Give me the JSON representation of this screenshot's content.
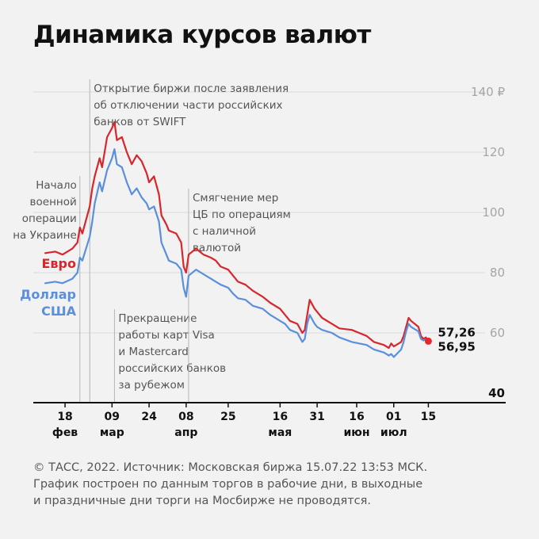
{
  "title": "Динамика курсов валют",
  "footer": {
    "line1": "© ТАСС, 2022. Источник: Московская биржа 15.07.22 13:53 МСК.",
    "line2": "График построен по данным торгов в рабочие дни, в выходные",
    "line3": "и праздничные дни торги на Мосбирже не проводятся."
  },
  "chart_data": {
    "type": "line",
    "title": "Динамика курсов валют",
    "ylim": [
      40,
      140
    ],
    "yticks": [
      {
        "value": 140,
        "label": "140 ₽"
      },
      {
        "value": 120,
        "label": "120"
      },
      {
        "value": 100,
        "label": "100"
      },
      {
        "value": 80,
        "label": "80"
      },
      {
        "value": 60,
        "label": "60"
      },
      {
        "value": 40,
        "label": "40"
      }
    ],
    "x_day_range": [
      "2022-02-09",
      "2022-07-20"
    ],
    "xticks": [
      {
        "date": "2022-02-18",
        "day": "18",
        "month": "фев"
      },
      {
        "date": "2022-03-09",
        "day": "09",
        "month": "мар"
      },
      {
        "date": "2022-03-24",
        "day": "24",
        "month": ""
      },
      {
        "date": "2022-04-08",
        "day": "08",
        "month": "апр"
      },
      {
        "date": "2022-04-25",
        "day": "25",
        "month": ""
      },
      {
        "date": "2022-05-16",
        "day": "16",
        "month": "мая"
      },
      {
        "date": "2022-05-31",
        "day": "31",
        "month": ""
      },
      {
        "date": "2022-06-16",
        "day": "16",
        "month": "июн"
      },
      {
        "date": "2022-07-01",
        "day": "01",
        "month": "июл"
      },
      {
        "date": "2022-07-15",
        "day": "15",
        "month": ""
      }
    ],
    "annotations": [
      {
        "date": "2022-02-24",
        "lines": [
          "Начало",
          "военной",
          "операции",
          "на Украине"
        ],
        "side": "left",
        "align": "top"
      },
      {
        "date": "2022-02-28",
        "lines": [
          "Открытие биржи после заявления",
          "об отключении части российских",
          "банков от SWIFT"
        ],
        "side": "right",
        "align": "top"
      },
      {
        "date": "2022-03-10",
        "lines": [
          "Прекращение",
          "работы карт Visa",
          "и Mastercard",
          "российских банков",
          "за рубежом"
        ],
        "side": "right",
        "align": "bottom"
      },
      {
        "date": "2022-04-09",
        "lines": [
          "Смягчение мер",
          "ЦБ по операциям",
          "с наличной",
          "валютой"
        ],
        "side": "right",
        "align": "top"
      }
    ],
    "series": [
      {
        "name": "Евро",
        "legend_lines": [
          "Евро"
        ],
        "color": "#d7262c",
        "end_label": "57,26",
        "points": [
          [
            "2022-02-10",
            86.5
          ],
          [
            "2022-02-14",
            87.0
          ],
          [
            "2022-02-17",
            86.0
          ],
          [
            "2022-02-21",
            88.0
          ],
          [
            "2022-02-22",
            89.0
          ],
          [
            "2022-02-23",
            90.0
          ],
          [
            "2022-02-24",
            95.0
          ],
          [
            "2022-02-25",
            93.0
          ],
          [
            "2022-02-28",
            102.0
          ],
          [
            "2022-03-01",
            108.0
          ],
          [
            "2022-03-02",
            112.0
          ],
          [
            "2022-03-04",
            118.0
          ],
          [
            "2022-03-05",
            115.0
          ],
          [
            "2022-03-07",
            125.0
          ],
          [
            "2022-03-09",
            128.0
          ],
          [
            "2022-03-10",
            130.0
          ],
          [
            "2022-03-11",
            124.0
          ],
          [
            "2022-03-13",
            125.0
          ],
          [
            "2022-03-15",
            120.0
          ],
          [
            "2022-03-17",
            116.0
          ],
          [
            "2022-03-19",
            119.0
          ],
          [
            "2022-03-21",
            117.0
          ],
          [
            "2022-03-23",
            113.0
          ],
          [
            "2022-03-24",
            110.0
          ],
          [
            "2022-03-26",
            112.0
          ],
          [
            "2022-03-28",
            106.0
          ],
          [
            "2022-03-29",
            99.0
          ],
          [
            "2022-03-31",
            96.0
          ],
          [
            "2022-04-01",
            94.0
          ],
          [
            "2022-04-04",
            93.0
          ],
          [
            "2022-04-06",
            90.0
          ],
          [
            "2022-04-07",
            82.0
          ],
          [
            "2022-04-08",
            80.0
          ],
          [
            "2022-04-09",
            86.0
          ],
          [
            "2022-04-12",
            88.0
          ],
          [
            "2022-04-15",
            86.0
          ],
          [
            "2022-04-18",
            85.0
          ],
          [
            "2022-04-20",
            84.0
          ],
          [
            "2022-04-22",
            82.0
          ],
          [
            "2022-04-25",
            81.0
          ],
          [
            "2022-04-27",
            79.0
          ],
          [
            "2022-04-29",
            77.0
          ],
          [
            "2022-05-02",
            76.0
          ],
          [
            "2022-05-05",
            74.0
          ],
          [
            "2022-05-09",
            72.0
          ],
          [
            "2022-05-12",
            70.0
          ],
          [
            "2022-05-16",
            68.0
          ],
          [
            "2022-05-18",
            66.0
          ],
          [
            "2022-05-20",
            64.0
          ],
          [
            "2022-05-23",
            63.0
          ],
          [
            "2022-05-25",
            60.0
          ],
          [
            "2022-05-26",
            61.0
          ],
          [
            "2022-05-27",
            66.0
          ],
          [
            "2022-05-28",
            71.0
          ],
          [
            "2022-05-30",
            68.0
          ],
          [
            "2022-05-31",
            67.0
          ],
          [
            "2022-06-02",
            65.0
          ],
          [
            "2022-06-06",
            63.0
          ],
          [
            "2022-06-09",
            61.5
          ],
          [
            "2022-06-14",
            61.0
          ],
          [
            "2022-06-17",
            60.0
          ],
          [
            "2022-06-20",
            59.0
          ],
          [
            "2022-06-23",
            57.0
          ],
          [
            "2022-06-27",
            56.0
          ],
          [
            "2022-06-29",
            55.0
          ],
          [
            "2022-06-30",
            56.5
          ],
          [
            "2022-07-01",
            55.5
          ],
          [
            "2022-07-04",
            57.0
          ],
          [
            "2022-07-05",
            59.0
          ],
          [
            "2022-07-06",
            62.0
          ],
          [
            "2022-07-07",
            65.0
          ],
          [
            "2022-07-08",
            64.0
          ],
          [
            "2022-07-11",
            62.0
          ],
          [
            "2022-07-12",
            59.0
          ],
          [
            "2022-07-13",
            58.0
          ],
          [
            "2022-07-14",
            58.5
          ],
          [
            "2022-07-15",
            57.26
          ]
        ]
      },
      {
        "name": "Доллар США",
        "legend_lines": [
          "Доллар",
          "США"
        ],
        "color": "#5b8fdb",
        "end_label": "56,95",
        "points": [
          [
            "2022-02-10",
            76.5
          ],
          [
            "2022-02-14",
            77.0
          ],
          [
            "2022-02-17",
            76.5
          ],
          [
            "2022-02-21",
            78.0
          ],
          [
            "2022-02-22",
            79.0
          ],
          [
            "2022-02-23",
            80.0
          ],
          [
            "2022-02-24",
            85.0
          ],
          [
            "2022-02-25",
            84.0
          ],
          [
            "2022-02-28",
            92.0
          ],
          [
            "2022-03-01",
            97.0
          ],
          [
            "2022-03-02",
            103.0
          ],
          [
            "2022-03-04",
            110.0
          ],
          [
            "2022-03-05",
            107.0
          ],
          [
            "2022-03-07",
            114.0
          ],
          [
            "2022-03-09",
            118.0
          ],
          [
            "2022-03-10",
            121.0
          ],
          [
            "2022-03-11",
            116.0
          ],
          [
            "2022-03-13",
            115.0
          ],
          [
            "2022-03-15",
            110.0
          ],
          [
            "2022-03-17",
            106.0
          ],
          [
            "2022-03-19",
            108.0
          ],
          [
            "2022-03-21",
            105.0
          ],
          [
            "2022-03-23",
            103.0
          ],
          [
            "2022-03-24",
            101.0
          ],
          [
            "2022-03-26",
            102.0
          ],
          [
            "2022-03-28",
            97.0
          ],
          [
            "2022-03-29",
            90.0
          ],
          [
            "2022-03-31",
            86.0
          ],
          [
            "2022-04-01",
            84.0
          ],
          [
            "2022-04-04",
            83.0
          ],
          [
            "2022-04-06",
            81.0
          ],
          [
            "2022-04-07",
            75.0
          ],
          [
            "2022-04-08",
            72.0
          ],
          [
            "2022-04-09",
            79.0
          ],
          [
            "2022-04-12",
            81.0
          ],
          [
            "2022-04-15",
            79.5
          ],
          [
            "2022-04-18",
            78.0
          ],
          [
            "2022-04-20",
            77.0
          ],
          [
            "2022-04-22",
            76.0
          ],
          [
            "2022-04-25",
            75.0
          ],
          [
            "2022-04-27",
            73.0
          ],
          [
            "2022-04-29",
            71.5
          ],
          [
            "2022-05-02",
            71.0
          ],
          [
            "2022-05-05",
            69.0
          ],
          [
            "2022-05-09",
            68.0
          ],
          [
            "2022-05-12",
            66.0
          ],
          [
            "2022-05-16",
            64.0
          ],
          [
            "2022-05-18",
            63.0
          ],
          [
            "2022-05-20",
            61.0
          ],
          [
            "2022-05-23",
            60.0
          ],
          [
            "2022-05-25",
            57.0
          ],
          [
            "2022-05-26",
            58.0
          ],
          [
            "2022-05-27",
            63.0
          ],
          [
            "2022-05-28",
            66.0
          ],
          [
            "2022-05-30",
            63.0
          ],
          [
            "2022-05-31",
            62.0
          ],
          [
            "2022-06-02",
            61.0
          ],
          [
            "2022-06-06",
            60.0
          ],
          [
            "2022-06-09",
            58.5
          ],
          [
            "2022-06-14",
            57.0
          ],
          [
            "2022-06-17",
            56.5
          ],
          [
            "2022-06-20",
            56.0
          ],
          [
            "2022-06-23",
            54.5
          ],
          [
            "2022-06-27",
            53.5
          ],
          [
            "2022-06-29",
            52.5
          ],
          [
            "2022-06-30",
            53.0
          ],
          [
            "2022-07-01",
            52.0
          ],
          [
            "2022-07-04",
            54.5
          ],
          [
            "2022-07-05",
            57.0
          ],
          [
            "2022-07-06",
            60.5
          ],
          [
            "2022-07-07",
            63.0
          ],
          [
            "2022-07-08",
            62.0
          ],
          [
            "2022-07-11",
            60.5
          ],
          [
            "2022-07-12",
            58.0
          ],
          [
            "2022-07-13",
            57.5
          ],
          [
            "2022-07-14",
            57.8
          ],
          [
            "2022-07-15",
            56.95
          ]
        ]
      }
    ],
    "grid": true,
    "end_marker_color": "#e8262c"
  }
}
